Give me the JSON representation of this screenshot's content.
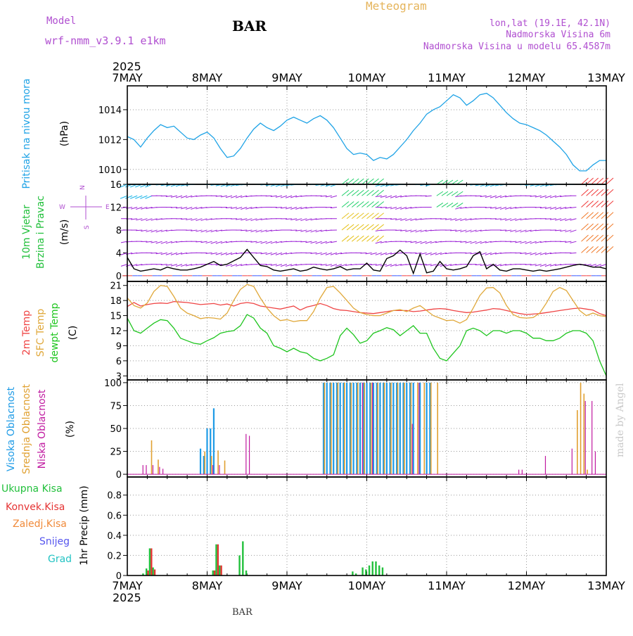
{
  "header": {
    "model_label": "Model",
    "model_name": "wrf-nmm_v3.9.1 e1km",
    "station": "BAR",
    "title": "Meteogram",
    "coords": "lon,lat (19.1E, 42.1N)",
    "elevation": "Nadmorska Visina 6m",
    "model_elevation": "Nadmorska Visina u modelu 65.4587m"
  },
  "footer": {
    "station": "BAR",
    "credit": "made by Angel"
  },
  "colors": {
    "pressure": "#1fa3e6",
    "wind_purple": "#9b1fd6",
    "wind_blue": "#3355ff",
    "wind_cyan": "#19b4e8",
    "wind_green": "#21d06b",
    "wind_yellow": "#e6c21f",
    "wind_orange": "#f07a2a",
    "wind_red": "#f03a3a",
    "temp2m": "#ef4444",
    "sfc": "#e0a83a",
    "dew": "#1ec51e",
    "cloud_high": "#1e9be6",
    "cloud_mid": "#e0a030",
    "cloud_low": "#c01aa0",
    "precip_total": "#22c03c",
    "precip_conv": "#e53333",
    "precip_frz": "#f08a3a",
    "snow": "#5555ee",
    "hail": "#22c3c3"
  },
  "chart_data": [
    {
      "type": "line",
      "panel": "pressure",
      "ylabel_left": "Pritisak na nivou mora",
      "ylabel_right": "(hPa)",
      "x_ticks_top": [
        "7MAY",
        "8MAY",
        "9MAY",
        "10MAY",
        "11MAY",
        "12MAY",
        "13MAY"
      ],
      "year_label": "2025",
      "ylim": [
        1009,
        1015.6
      ],
      "yticks": [
        1010,
        1012,
        1014
      ],
      "grid": true,
      "x": [
        0,
        2,
        4,
        6,
        8,
        10,
        12,
        14,
        16,
        18,
        20,
        22,
        24,
        26,
        28,
        30,
        32,
        34,
        36,
        38,
        40,
        42,
        44,
        46,
        48,
        50,
        52,
        54,
        56,
        58,
        60,
        62,
        64,
        66,
        68,
        70,
        72,
        74,
        76,
        78,
        80,
        82,
        84,
        86,
        88,
        90,
        92,
        94,
        96,
        98,
        100,
        102,
        104,
        106,
        108,
        110,
        112,
        114,
        116,
        118,
        120,
        122,
        124,
        126,
        128,
        130,
        132,
        134,
        136,
        138,
        140,
        142,
        144
      ],
      "values": [
        1012.2,
        1012.0,
        1011.5,
        1012.1,
        1012.6,
        1013.0,
        1012.8,
        1012.9,
        1012.5,
        1012.1,
        1012.0,
        1012.3,
        1012.5,
        1012.1,
        1011.4,
        1010.8,
        1010.9,
        1011.4,
        1012.1,
        1012.7,
        1013.1,
        1012.8,
        1012.6,
        1012.9,
        1013.3,
        1013.5,
        1013.3,
        1013.1,
        1013.4,
        1013.6,
        1013.3,
        1012.8,
        1012.1,
        1011.4,
        1011.0,
        1011.1,
        1011.0,
        1010.6,
        1010.8,
        1010.7,
        1011.0,
        1011.5,
        1012.0,
        1012.6,
        1013.1,
        1013.7,
        1014.0,
        1014.2,
        1014.6,
        1015.0,
        1014.8,
        1014.3,
        1014.6,
        1015.0,
        1015.1,
        1014.8,
        1014.3,
        1013.8,
        1013.4,
        1013.1,
        1013.0,
        1012.8,
        1012.6,
        1012.3,
        1011.9,
        1011.5,
        1011.0,
        1010.3,
        1009.9,
        1009.9,
        1010.3,
        1010.6,
        1010.6
      ]
    },
    {
      "type": "line",
      "panel": "wind",
      "ylabel_left": [
        "10m Vjetar",
        "Brzina i Pravac"
      ],
      "ylabel_right": "(m/s)",
      "compass": {
        "north": "N",
        "west": "W",
        "east": "E",
        "south": "S"
      },
      "ylim": [
        -1,
        16
      ],
      "yticks": [
        0,
        4,
        8,
        12,
        16
      ],
      "barb_levels": [
        0,
        2,
        4,
        6,
        8,
        10,
        12,
        14,
        16
      ],
      "series": [
        {
          "x": [
            0,
            2,
            4,
            6,
            8,
            10,
            12,
            14,
            16,
            18,
            20,
            22,
            24,
            26,
            28,
            30,
            32,
            34,
            36,
            38,
            40,
            42,
            44,
            46,
            48,
            50,
            52,
            54,
            56,
            58,
            60,
            62,
            64,
            66,
            68,
            70,
            72,
            74,
            76,
            78,
            80,
            82,
            84,
            86,
            88,
            90,
            92,
            94,
            96,
            98,
            100,
            102,
            104,
            106,
            108,
            110,
            112,
            114,
            116,
            118,
            120,
            122,
            124,
            126,
            128,
            130,
            132,
            134,
            136,
            138,
            140,
            142,
            144
          ],
          "values": [
            3.2,
            1.2,
            0.8,
            1.0,
            1.2,
            1.0,
            1.5,
            1.2,
            1.0,
            1.0,
            1.2,
            1.5,
            2.0,
            2.5,
            1.8,
            2.0,
            2.6,
            3.2,
            4.6,
            3.2,
            1.8,
            1.6,
            1.0,
            0.8,
            1.0,
            1.2,
            0.8,
            1.0,
            1.5,
            1.2,
            1.0,
            1.2,
            1.6,
            1.0,
            1.2,
            1.2,
            2.2,
            1.0,
            0.8,
            3.0,
            3.5,
            4.5,
            3.5,
            0.4,
            3.8,
            0.5,
            0.8,
            2.5,
            1.2,
            1.0,
            1.2,
            1.6,
            3.5,
            4.2,
            1.2,
            2.0,
            1.0,
            0.8,
            1.2,
            1.2,
            1.0,
            0.8,
            1.0,
            0.8,
            1.0,
            1.2,
            1.5,
            1.8,
            2.0,
            1.8,
            1.5,
            1.5,
            1.2
          ]
        }
      ]
    },
    {
      "type": "line",
      "panel": "temperature",
      "ylabel_left": [
        "2m Temp",
        "SFC Temp",
        "dewpt Temp"
      ],
      "ylabel_right": "(C)",
      "ylim": [
        2.2,
        21.8
      ],
      "yticks": [
        3,
        6,
        9,
        12,
        15,
        18,
        21
      ],
      "grid": true,
      "x": [
        0,
        2,
        4,
        6,
        8,
        10,
        12,
        14,
        16,
        18,
        20,
        22,
        24,
        26,
        28,
        30,
        32,
        34,
        36,
        38,
        40,
        42,
        44,
        46,
        48,
        50,
        52,
        54,
        56,
        58,
        60,
        62,
        64,
        66,
        68,
        70,
        72,
        74,
        76,
        78,
        80,
        82,
        84,
        86,
        88,
        90,
        92,
        94,
        96,
        98,
        100,
        102,
        104,
        106,
        108,
        110,
        112,
        114,
        116,
        118,
        120,
        122,
        124,
        126,
        128,
        130,
        132,
        134,
        136,
        138,
        140,
        142,
        144
      ],
      "series": [
        {
          "name": "2m Temp",
          "values": [
            16.8,
            17.6,
            16.9,
            17.2,
            17.4,
            17.5,
            17.4,
            17.8,
            17.7,
            17.6,
            17.4,
            17.2,
            17.3,
            17.4,
            17.1,
            17.3,
            16.9,
            17.4,
            17.6,
            17.4,
            16.9,
            16.7,
            16.5,
            16.3,
            16.6,
            16.9,
            16.1,
            16.7,
            17.0,
            17.4,
            17.0,
            16.4,
            16.1,
            16.0,
            15.8,
            15.6,
            15.5,
            15.4,
            15.6,
            15.8,
            16.0,
            16.0,
            16.0,
            15.8,
            15.9,
            16.1,
            16.3,
            16.4,
            16.3,
            16.0,
            15.8,
            15.6,
            15.7,
            15.9,
            16.1,
            16.4,
            16.3,
            16.0,
            15.7,
            15.4,
            15.2,
            15.3,
            15.4,
            15.6,
            15.8,
            16.0,
            16.2,
            16.4,
            16.5,
            16.3,
            16.1,
            15.4,
            15.0
          ]
        },
        {
          "name": "SFC Temp",
          "values": [
            18.5,
            17.0,
            16.5,
            17.5,
            19.8,
            21.0,
            20.8,
            18.8,
            16.5,
            15.5,
            15.0,
            14.4,
            14.6,
            14.5,
            14.3,
            15.5,
            18.0,
            20.2,
            21.2,
            20.8,
            18.5,
            16.5,
            15.0,
            14.0,
            14.2,
            13.8,
            14.0,
            14.0,
            15.8,
            18.5,
            20.6,
            20.8,
            19.5,
            18.0,
            16.5,
            15.6,
            15.2,
            15.0,
            15.0,
            15.5,
            16.0,
            16.2,
            15.8,
            16.5,
            17.0,
            16.0,
            15.0,
            14.5,
            14.0,
            14.1,
            13.5,
            14.2,
            16.5,
            19.0,
            20.5,
            20.6,
            19.5,
            17.0,
            15.2,
            14.6,
            14.5,
            14.6,
            15.5,
            17.5,
            19.8,
            20.6,
            20.0,
            18.0,
            16.0,
            15.0,
            15.5,
            15.0,
            14.8
          ]
        },
        {
          "name": "dewpt Temp",
          "values": [
            14.5,
            12.0,
            11.5,
            12.5,
            13.5,
            14.2,
            14.0,
            12.5,
            10.5,
            10.0,
            9.5,
            9.3,
            10.0,
            10.6,
            11.5,
            11.8,
            12.0,
            13.0,
            15.2,
            14.5,
            12.5,
            11.5,
            9.0,
            8.5,
            7.8,
            8.5,
            7.8,
            7.5,
            6.5,
            6.0,
            6.5,
            7.2,
            11.0,
            12.5,
            11.2,
            9.5,
            10.0,
            11.5,
            12.0,
            12.6,
            12.2,
            11.0,
            12.0,
            13.0,
            11.5,
            11.5,
            8.5,
            6.5,
            6.0,
            7.5,
            9.0,
            12.0,
            12.5,
            12.0,
            11.0,
            12.0,
            12.0,
            11.5,
            12.0,
            12.0,
            11.5,
            10.5,
            10.5,
            10.0,
            10.0,
            10.5,
            11.5,
            12.0,
            12.0,
            11.5,
            10.0,
            6.0,
            3.0
          ]
        }
      ]
    },
    {
      "type": "bar",
      "panel": "clouds",
      "ylabel_left": [
        "Visoka Oblacnost",
        "Srednja Oblacnost",
        "Niska Oblacnost"
      ],
      "ylabel_right": "(%)",
      "ylim": [
        -3,
        103
      ],
      "yticks": [
        0,
        25,
        50,
        75,
        100
      ],
      "grid": true,
      "series": [
        {
          "name": "Visoka Oblacnost",
          "x": [
            22,
            23,
            24,
            25,
            26,
            59,
            60,
            61,
            62,
            63,
            64,
            65,
            66,
            67,
            68,
            69,
            70,
            71,
            72,
            73,
            74,
            75,
            76,
            77,
            78,
            79,
            80,
            81,
            82,
            83,
            84,
            85,
            86,
            88,
            90,
            91
          ],
          "values": [
            28,
            20,
            50,
            50,
            72,
            100,
            100,
            100,
            100,
            100,
            100,
            100,
            100,
            100,
            100,
            100,
            100,
            100,
            100,
            100,
            100,
            100,
            100,
            100,
            100,
            100,
            100,
            100,
            100,
            100,
            100,
            100,
            100,
            100,
            100,
            100
          ]
        },
        {
          "name": "Srednja Oblacnost",
          "x": [
            7,
            9,
            23,
            25,
            27,
            29,
            59,
            61,
            63,
            65,
            67,
            69,
            71,
            73,
            75,
            77,
            79,
            81,
            83,
            85,
            87,
            89,
            91,
            93,
            135,
            136,
            137,
            138
          ],
          "values": [
            37,
            16,
            25,
            20,
            26,
            15,
            100,
            100,
            100,
            100,
            100,
            100,
            100,
            100,
            100,
            100,
            100,
            100,
            100,
            100,
            100,
            100,
            100,
            100,
            70,
            100,
            88,
            5
          ]
        },
        {
          "name": "Niska Oblacnost",
          "x": [
            5,
            6,
            8,
            10,
            11,
            26,
            28,
            36,
            37,
            71,
            74,
            86,
            88,
            118,
            119,
            126,
            134,
            138,
            140,
            141
          ],
          "values": [
            10,
            10,
            10,
            8,
            6,
            10,
            10,
            44,
            42,
            100,
            100,
            55,
            100,
            5,
            5,
            20,
            28,
            80,
            80,
            25
          ]
        }
      ]
    },
    {
      "type": "bar",
      "panel": "precip",
      "ylabel_left": [
        "Ukupna Kisa",
        "Konvek.Kisa",
        "Zaledj.Kisa",
        "Snijeg",
        "Grad"
      ],
      "ylabel_right": "1hr Precip (mm)",
      "x_ticks_bottom": [
        "7MAY",
        "8MAY",
        "9MAY",
        "10MAY",
        "11MAY",
        "12MAY",
        "13MAY"
      ],
      "year_label": "2025",
      "ylim": [
        0,
        0.98
      ],
      "yticks": [
        0,
        0.2,
        0.4,
        0.6,
        0.8
      ],
      "grid": true,
      "series": [
        {
          "name": "Ukupna Kisa",
          "x": [
            5,
            6,
            7,
            8,
            26,
            27,
            28,
            34,
            35,
            36,
            68,
            69,
            71,
            72,
            73,
            74,
            75,
            76,
            77
          ],
          "values": [
            0.02,
            0.07,
            0.27,
            0.08,
            0.05,
            0.31,
            0.1,
            0.2,
            0.34,
            0.05,
            0.04,
            0.02,
            0.08,
            0.06,
            0.1,
            0.14,
            0.14,
            0.1,
            0.08
          ]
        },
        {
          "name": "Konvek.Kisa",
          "x": [
            6,
            7,
            8,
            26,
            27,
            28
          ],
          "values": [
            0.05,
            0.27,
            0.06,
            0.05,
            0.31,
            0.1
          ]
        }
      ]
    }
  ]
}
